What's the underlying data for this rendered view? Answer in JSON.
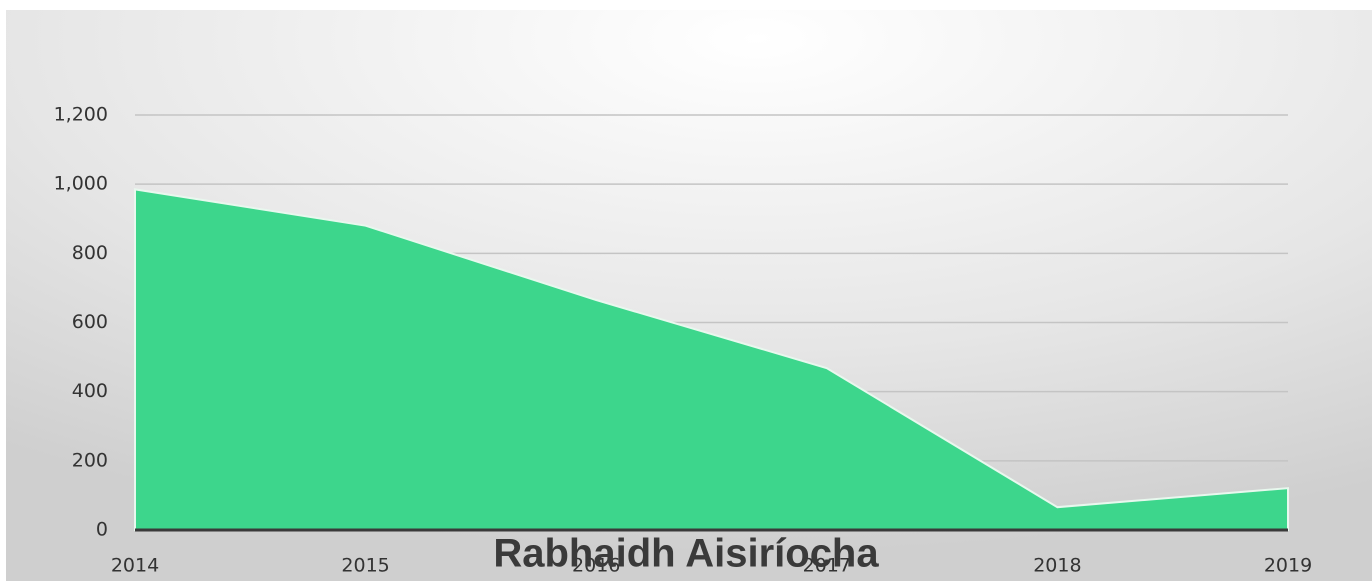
{
  "chart_data": {
    "type": "area",
    "title": "Rabhaidh Aisiríocha",
    "categories": [
      "2014",
      "2015",
      "2016",
      "2017",
      "2018",
      "2019"
    ],
    "values": [
      985,
      880,
      665,
      468,
      66,
      121
    ],
    "color": "#3dd68c",
    "ylim": [
      0,
      1200
    ],
    "yticks": [
      0,
      200,
      400,
      600,
      800,
      {
        "value": 1000,
        "label": "1,000"
      },
      {
        "value": 1200,
        "label": "1,200"
      }
    ],
    "grid": true
  }
}
